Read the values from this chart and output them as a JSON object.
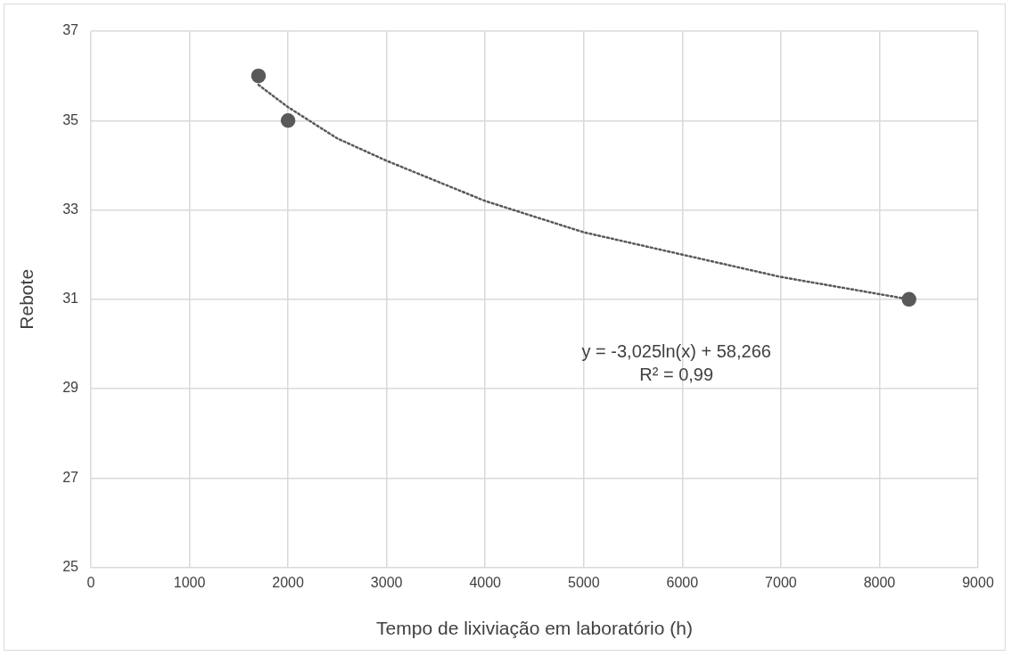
{
  "chart_data": {
    "type": "scatter",
    "xlabel": "Tempo de lixiviação em laboratório (h)",
    "ylabel": "Rebote",
    "xlim": [
      0,
      9000
    ],
    "xticks": [
      0,
      1000,
      2000,
      3000,
      4000,
      5000,
      6000,
      7000,
      8000,
      9000
    ],
    "ylim": [
      25,
      37
    ],
    "yticks": [
      25,
      27,
      29,
      31,
      33,
      35,
      37
    ],
    "grid": true,
    "legend": false,
    "series": [
      {
        "type": "scatter",
        "color": "#595959",
        "marker": "circle",
        "x": [
          1700,
          2000,
          8300
        ],
        "values": [
          36,
          35,
          31
        ]
      },
      {
        "type": "line",
        "color": "#595959",
        "marker": "none",
        "line_style": "dotted",
        "x": [
          1700,
          2000,
          2500,
          3000,
          4000,
          5000,
          6000,
          7000,
          8300
        ],
        "values": [
          35.8,
          35.3,
          34.6,
          34.1,
          33.2,
          32.5,
          32.0,
          31.5,
          31.0
        ]
      }
    ],
    "annotations": [
      "y = -3,025ln(x) + 58,266",
      "R² = 0,99"
    ]
  }
}
